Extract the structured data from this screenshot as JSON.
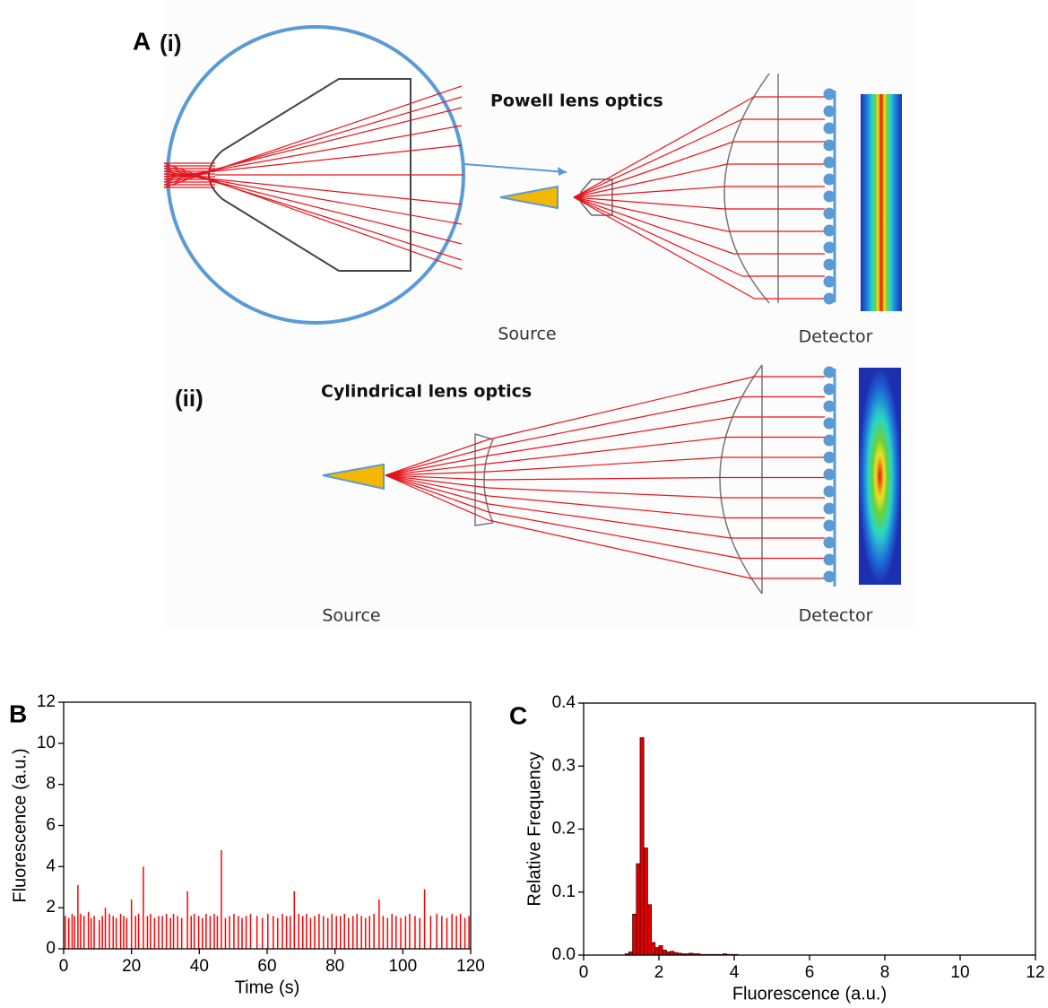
{
  "diagram": {
    "panel_label": "A",
    "sub_i": "(i)",
    "sub_ii": "(ii)",
    "powell_title": "Powell lens optics",
    "cylindrical_title": "Cylindrical lens optics",
    "source_i": "Source",
    "detector_i": "Detector",
    "source_ii": "Source",
    "detector_ii": "Detector"
  },
  "chart_data": [
    {
      "type": "spike",
      "panel_label": "B",
      "xlabel": "Time (s)",
      "ylabel": "Fluorescence (a.u.)",
      "color": "#ff0000",
      "x": [
        0.5,
        1.5,
        2.5,
        3.2,
        4.2,
        5.0,
        6.0,
        7.3,
        8.1,
        9.0,
        10.5,
        11.4,
        12.3,
        13.5,
        14.6,
        15.5,
        16.8,
        17.7,
        18.6,
        20.0,
        21.2,
        22.1,
        23.5,
        24.7,
        25.6,
        26.8,
        28.0,
        29.1,
        30.3,
        31.5,
        32.4,
        33.6,
        34.8,
        36.5,
        37.6,
        38.5,
        39.8,
        40.9,
        42.0,
        43.2,
        44.4,
        45.3,
        46.5,
        47.7,
        48.9,
        50.2,
        51.5,
        52.6,
        53.8,
        55.1,
        57.0,
        58.6,
        60.2,
        61.8,
        63.1,
        64.5,
        65.7,
        66.8,
        68.0,
        69.3,
        70.5,
        71.6,
        72.8,
        74.0,
        75.3,
        76.6,
        77.9,
        79.1,
        80.4,
        81.6,
        82.8,
        84.0,
        85.3,
        86.5,
        87.8,
        89.0,
        90.2,
        91.5,
        93.0,
        94.2,
        95.5,
        96.8,
        98.0,
        99.4,
        100.8,
        102.0,
        103.6,
        105.0,
        106.4,
        108.2,
        110.0,
        111.5,
        113.0,
        114.5,
        115.8,
        117.0,
        118.3,
        119.5
      ],
      "values": [
        1.6,
        1.5,
        1.7,
        1.6,
        3.1,
        1.7,
        1.6,
        1.8,
        1.5,
        1.6,
        1.4,
        1.6,
        2.0,
        1.7,
        1.6,
        1.5,
        1.7,
        1.6,
        1.5,
        2.4,
        1.6,
        1.7,
        4.0,
        1.6,
        1.7,
        1.5,
        1.6,
        1.6,
        1.7,
        1.5,
        1.7,
        1.6,
        1.5,
        2.8,
        1.6,
        1.7,
        1.6,
        1.5,
        1.7,
        1.6,
        1.7,
        1.6,
        4.8,
        1.5,
        1.6,
        1.7,
        1.6,
        1.5,
        1.6,
        1.7,
        1.6,
        1.5,
        1.7,
        1.6,
        1.5,
        1.7,
        1.6,
        1.6,
        2.8,
        1.7,
        1.6,
        1.7,
        1.5,
        1.6,
        1.7,
        1.6,
        1.5,
        1.7,
        1.6,
        1.6,
        1.7,
        1.5,
        1.6,
        1.7,
        1.6,
        1.5,
        1.6,
        1.7,
        2.4,
        1.6,
        1.5,
        1.7,
        1.6,
        1.5,
        1.6,
        1.7,
        1.6,
        1.5,
        2.9,
        1.6,
        1.7,
        1.6,
        1.5,
        1.7,
        1.6,
        1.7,
        1.5,
        1.6
      ],
      "xlim": [
        0,
        120
      ],
      "xticks": [
        0,
        20,
        40,
        60,
        80,
        100,
        120
      ],
      "ylim": [
        0,
        12
      ],
      "yticks": [
        0,
        2,
        4,
        6,
        8,
        10,
        12
      ]
    },
    {
      "type": "histogram",
      "panel_label": "C",
      "xlabel": "Fluorescence (a.u.)",
      "ylabel": "Relative Frequency",
      "color": "#e00000",
      "bins": [
        1.1,
        1.2,
        1.3,
        1.4,
        1.5,
        1.6,
        1.7,
        1.8,
        1.9,
        2.0,
        2.1,
        2.2,
        2.3,
        2.4,
        2.5,
        2.6,
        2.7,
        2.8,
        2.9,
        3.0,
        3.1,
        3.2,
        3.3,
        3.4,
        3.5,
        3.6,
        3.7,
        3.8,
        3.9,
        4.0,
        4.1
      ],
      "values": [
        0.002,
        0.005,
        0.065,
        0.145,
        0.345,
        0.17,
        0.08,
        0.02,
        0.012,
        0.015,
        0.008,
        0.005,
        0.006,
        0.004,
        0.003,
        0.002,
        0.002,
        0.003,
        0.002,
        0.002,
        0.001,
        0.001,
        0.001,
        0.001,
        0.001,
        0.001,
        0.002,
        0.001,
        0.001,
        0.001
      ],
      "xlim": [
        0,
        12
      ],
      "xticks": [
        0,
        2,
        4,
        6,
        8,
        10,
        12
      ],
      "ylim": [
        0,
        0.4
      ],
      "yticks": [
        {
          "value": 0,
          "label": "0.0"
        },
        0.1,
        0.2,
        0.3,
        0.4
      ]
    }
  ]
}
